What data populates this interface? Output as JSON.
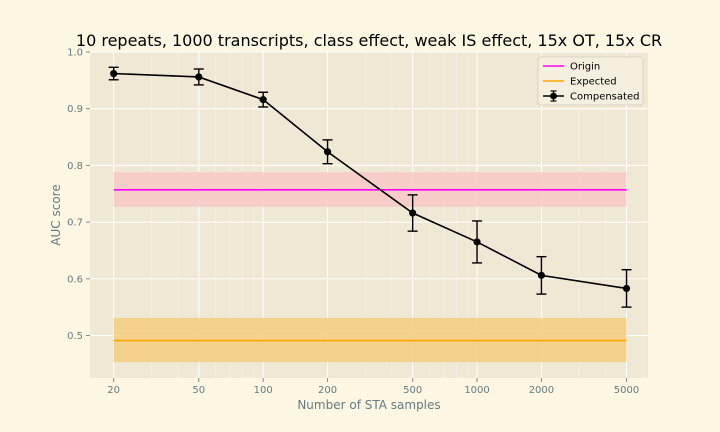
{
  "chart_data": {
    "type": "line",
    "title": "10 repeats, 1000 transcripts, class effect, weak IS effect, 15x OT, 15x CR",
    "xlabel": "Number of STA samples",
    "ylabel": "AUC score",
    "xscale": "log",
    "xlim": [
      15.5,
      6300
    ],
    "ylim": [
      0.425,
      1.0
    ],
    "xticks": [
      20,
      50,
      100,
      200,
      500,
      1000,
      2000,
      5000
    ],
    "yticks": [
      0.5,
      0.6,
      0.7,
      0.8,
      0.9,
      1.0
    ],
    "grid": true,
    "legend_position": "top-right",
    "series": [
      {
        "name": "Origin",
        "kind": "hline_band",
        "color": "#ff00ff",
        "band_color": "#f8c8c8",
        "x": [
          20,
          5000
        ],
        "value": 0.757,
        "band": [
          0.727,
          0.788
        ]
      },
      {
        "name": "Expected",
        "kind": "hline_band",
        "color": "#ffa500",
        "band_color": "#f5cc7f",
        "x": [
          20,
          5000
        ],
        "value": 0.491,
        "band": [
          0.453,
          0.531
        ]
      },
      {
        "name": "Compensated",
        "kind": "line_errorbar",
        "color": "#000000",
        "x": [
          20,
          50,
          100,
          200,
          500,
          1000,
          2000,
          5000
        ],
        "y": [
          0.962,
          0.956,
          0.916,
          0.824,
          0.716,
          0.665,
          0.606,
          0.583
        ],
        "yerr": [
          0.011,
          0.014,
          0.013,
          0.021,
          0.032,
          0.037,
          0.033,
          0.033
        ]
      }
    ]
  }
}
